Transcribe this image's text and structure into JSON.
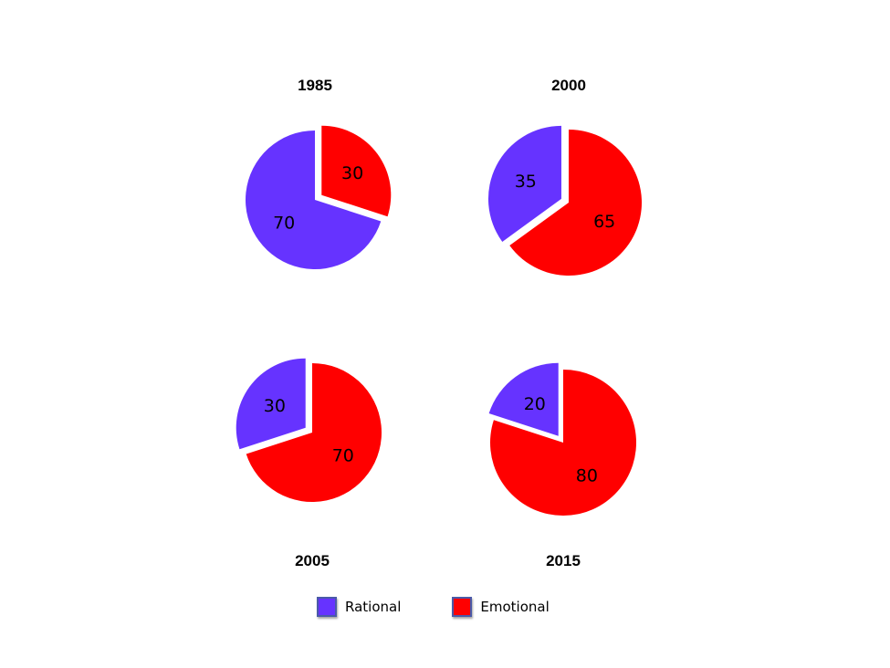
{
  "chart_data": {
    "type": "pie",
    "colors": {
      "Rational": "#6633ff",
      "Emotional": "#ff0000"
    },
    "legend": {
      "placement": "bottom",
      "entries": [
        "Rational",
        "Emotional"
      ]
    },
    "charts": [
      {
        "title": "1985",
        "title_placement": "top",
        "exploded": "Emotional",
        "slices": [
          {
            "label": "Emotional",
            "value": 30
          },
          {
            "label": "Rational",
            "value": 70
          }
        ]
      },
      {
        "title": "2000",
        "title_placement": "top",
        "exploded": "Rational",
        "slices": [
          {
            "label": "Emotional",
            "value": 65
          },
          {
            "label": "Rational",
            "value": 35
          }
        ]
      },
      {
        "title": "2005",
        "title_placement": "bottom",
        "exploded": "Rational",
        "slices": [
          {
            "label": "Emotional",
            "value": 70
          },
          {
            "label": "Rational",
            "value": 30
          }
        ]
      },
      {
        "title": "2015",
        "title_placement": "bottom",
        "exploded": "Rational",
        "slices": [
          {
            "label": "Emotional",
            "value": 80
          },
          {
            "label": "Rational",
            "value": 20
          }
        ]
      }
    ]
  }
}
